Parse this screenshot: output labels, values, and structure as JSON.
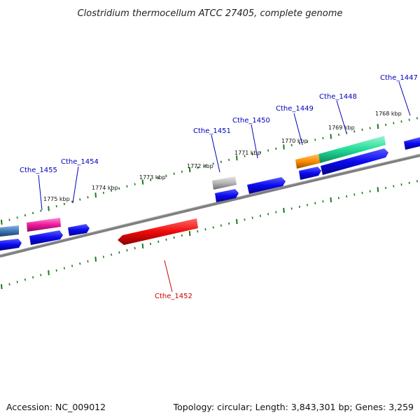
{
  "title": "Clostridium thermocellum ATCC 27405, complete genome",
  "footer": {
    "accession": "Accession: NC_009012",
    "summary": "Topology: circular; Length: 3,843,301 bp; Genes: 3,259"
  },
  "ruler_labels": [
    "1775 kbp",
    "1774 kbp",
    "1773 kbp",
    "1772 kbp",
    "1771 kbp",
    "1770 kbp",
    "1769 kbp",
    "1768 kbp"
  ],
  "gene_labels": [
    {
      "text": "Cthe_1455",
      "color": "#0000bb"
    },
    {
      "text": "Cthe_1454",
      "color": "#0000bb"
    },
    {
      "text": "Cthe_1451",
      "color": "#0000bb"
    },
    {
      "text": "Cthe_1450",
      "color": "#0000bb"
    },
    {
      "text": "Cthe_1449",
      "color": "#0000bb"
    },
    {
      "text": "Cthe_1448",
      "color": "#0000bb"
    },
    {
      "text": "Cthe_1447",
      "color": "#0000bb"
    },
    {
      "text": "Cthe_1452",
      "color": "#cc0000"
    }
  ],
  "colors": {
    "backbone": "#7f7f7f",
    "tick": "#1a7a1a",
    "gene_blue": "#0a0aee",
    "gene_red": "#ee0a0a",
    "gene_magenta": "#ee1aa0",
    "gene_green": "#22dd99",
    "gene_orange": "#ff8c00",
    "gene_gray": "#a9a9a9",
    "gene_steel": "#3f78b8"
  }
}
